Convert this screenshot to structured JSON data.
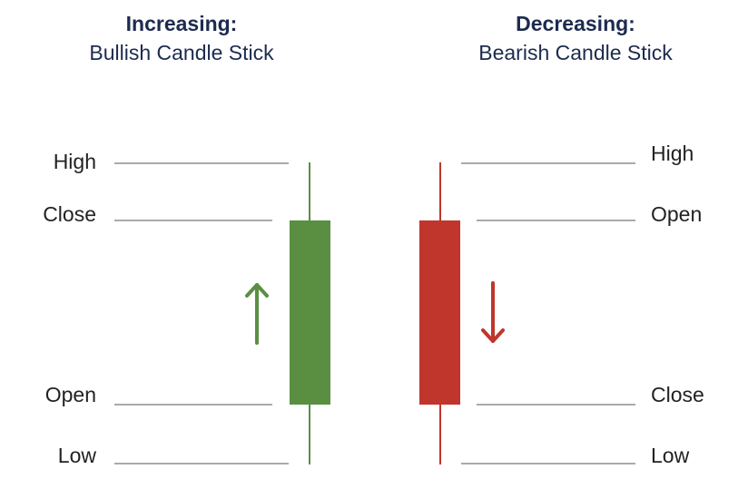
{
  "bullish": {
    "heading": "Increasing:",
    "subheading": "Bullish Candle Stick",
    "color": "#5a8f42",
    "labels": {
      "high": "High",
      "close": "Close",
      "open": "Open",
      "low": "Low"
    },
    "direction": "up"
  },
  "bearish": {
    "heading": "Decreasing:",
    "subheading": "Bearish Candle Stick",
    "color": "#c0362c",
    "labels": {
      "high": "High",
      "open": "Open",
      "close": "Close",
      "low": "Low"
    },
    "direction": "down"
  },
  "guide_line_color": "#777777"
}
